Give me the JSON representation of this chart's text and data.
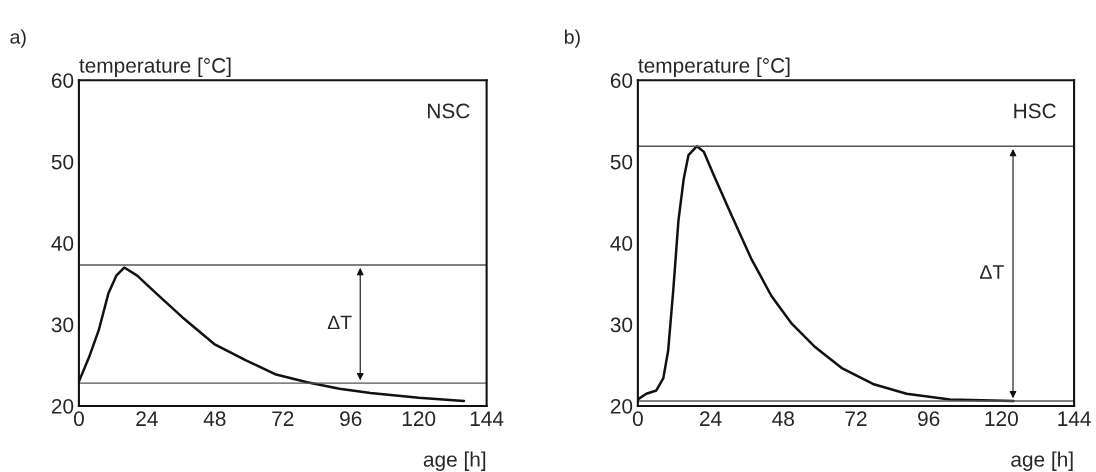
{
  "chart_data": [
    {
      "type": "line",
      "title": "a)",
      "xlabel": "age [h]",
      "ylabel": "temperature [°C]",
      "x": [
        0,
        3.6,
        7,
        10.4,
        13.2,
        16,
        20.6,
        27.4,
        36.5,
        47.8,
        59,
        69.3,
        80.6,
        92,
        103,
        120,
        136
      ],
      "series": [
        {
          "color": "#111111",
          "values": [
            23,
            26,
            29.3,
            33.8,
            36,
            37,
            36,
            33.8,
            30.9,
            27.6,
            25.6,
            23.9,
            22.9,
            22.1,
            21.6,
            21,
            20.6
          ]
        }
      ],
      "xlim": [
        0,
        144
      ],
      "xticks": [
        0,
        24,
        48,
        72,
        96,
        120,
        144
      ],
      "ylim": [
        20,
        60
      ],
      "yticks": [
        20,
        30,
        40,
        50,
        60
      ],
      "ref_lines": [
        {
          "axis": "y",
          "value": 37.3,
          "color": "#555555"
        },
        {
          "axis": "y",
          "value": 22.8,
          "color": "#555555"
        }
      ],
      "annotations": [
        "NSC",
        "ΔT"
      ],
      "grid": false,
      "legend": false,
      "marker": "none",
      "line_style": "solid"
    },
    {
      "type": "line",
      "title": "b)",
      "xlabel": "age [h]",
      "ylabel": "temperature [°C]",
      "x": [
        0,
        2.8,
        6.1,
        8.4,
        10,
        11.7,
        13.4,
        15.1,
        16.7,
        19.5,
        21.8,
        25.1,
        30.7,
        37.4,
        44.1,
        50.8,
        58.6,
        67.5,
        77.6,
        88.7,
        103,
        124
      ],
      "series": [
        {
          "color": "#111111",
          "values": [
            20.8,
            21.5,
            21.9,
            23.4,
            26.8,
            34.3,
            42.8,
            47.8,
            50.8,
            51.9,
            51.2,
            48.3,
            43.6,
            38.1,
            33.5,
            30.1,
            27.2,
            24.6,
            22.7,
            21.5,
            20.8,
            20.6
          ]
        }
      ],
      "xlim": [
        0,
        144
      ],
      "xticks": [
        0,
        24,
        48,
        72,
        96,
        120,
        144
      ],
      "ylim": [
        20,
        60
      ],
      "yticks": [
        20,
        30,
        40,
        50,
        60
      ],
      "ref_lines": [
        {
          "axis": "y",
          "value": 51.9,
          "color": "#555555"
        },
        {
          "axis": "y",
          "value": 20.6,
          "color": "#555555"
        }
      ],
      "annotations": [
        "HSC",
        "ΔT"
      ],
      "grid": false,
      "legend": false,
      "marker": "none",
      "line_style": "solid"
    }
  ]
}
